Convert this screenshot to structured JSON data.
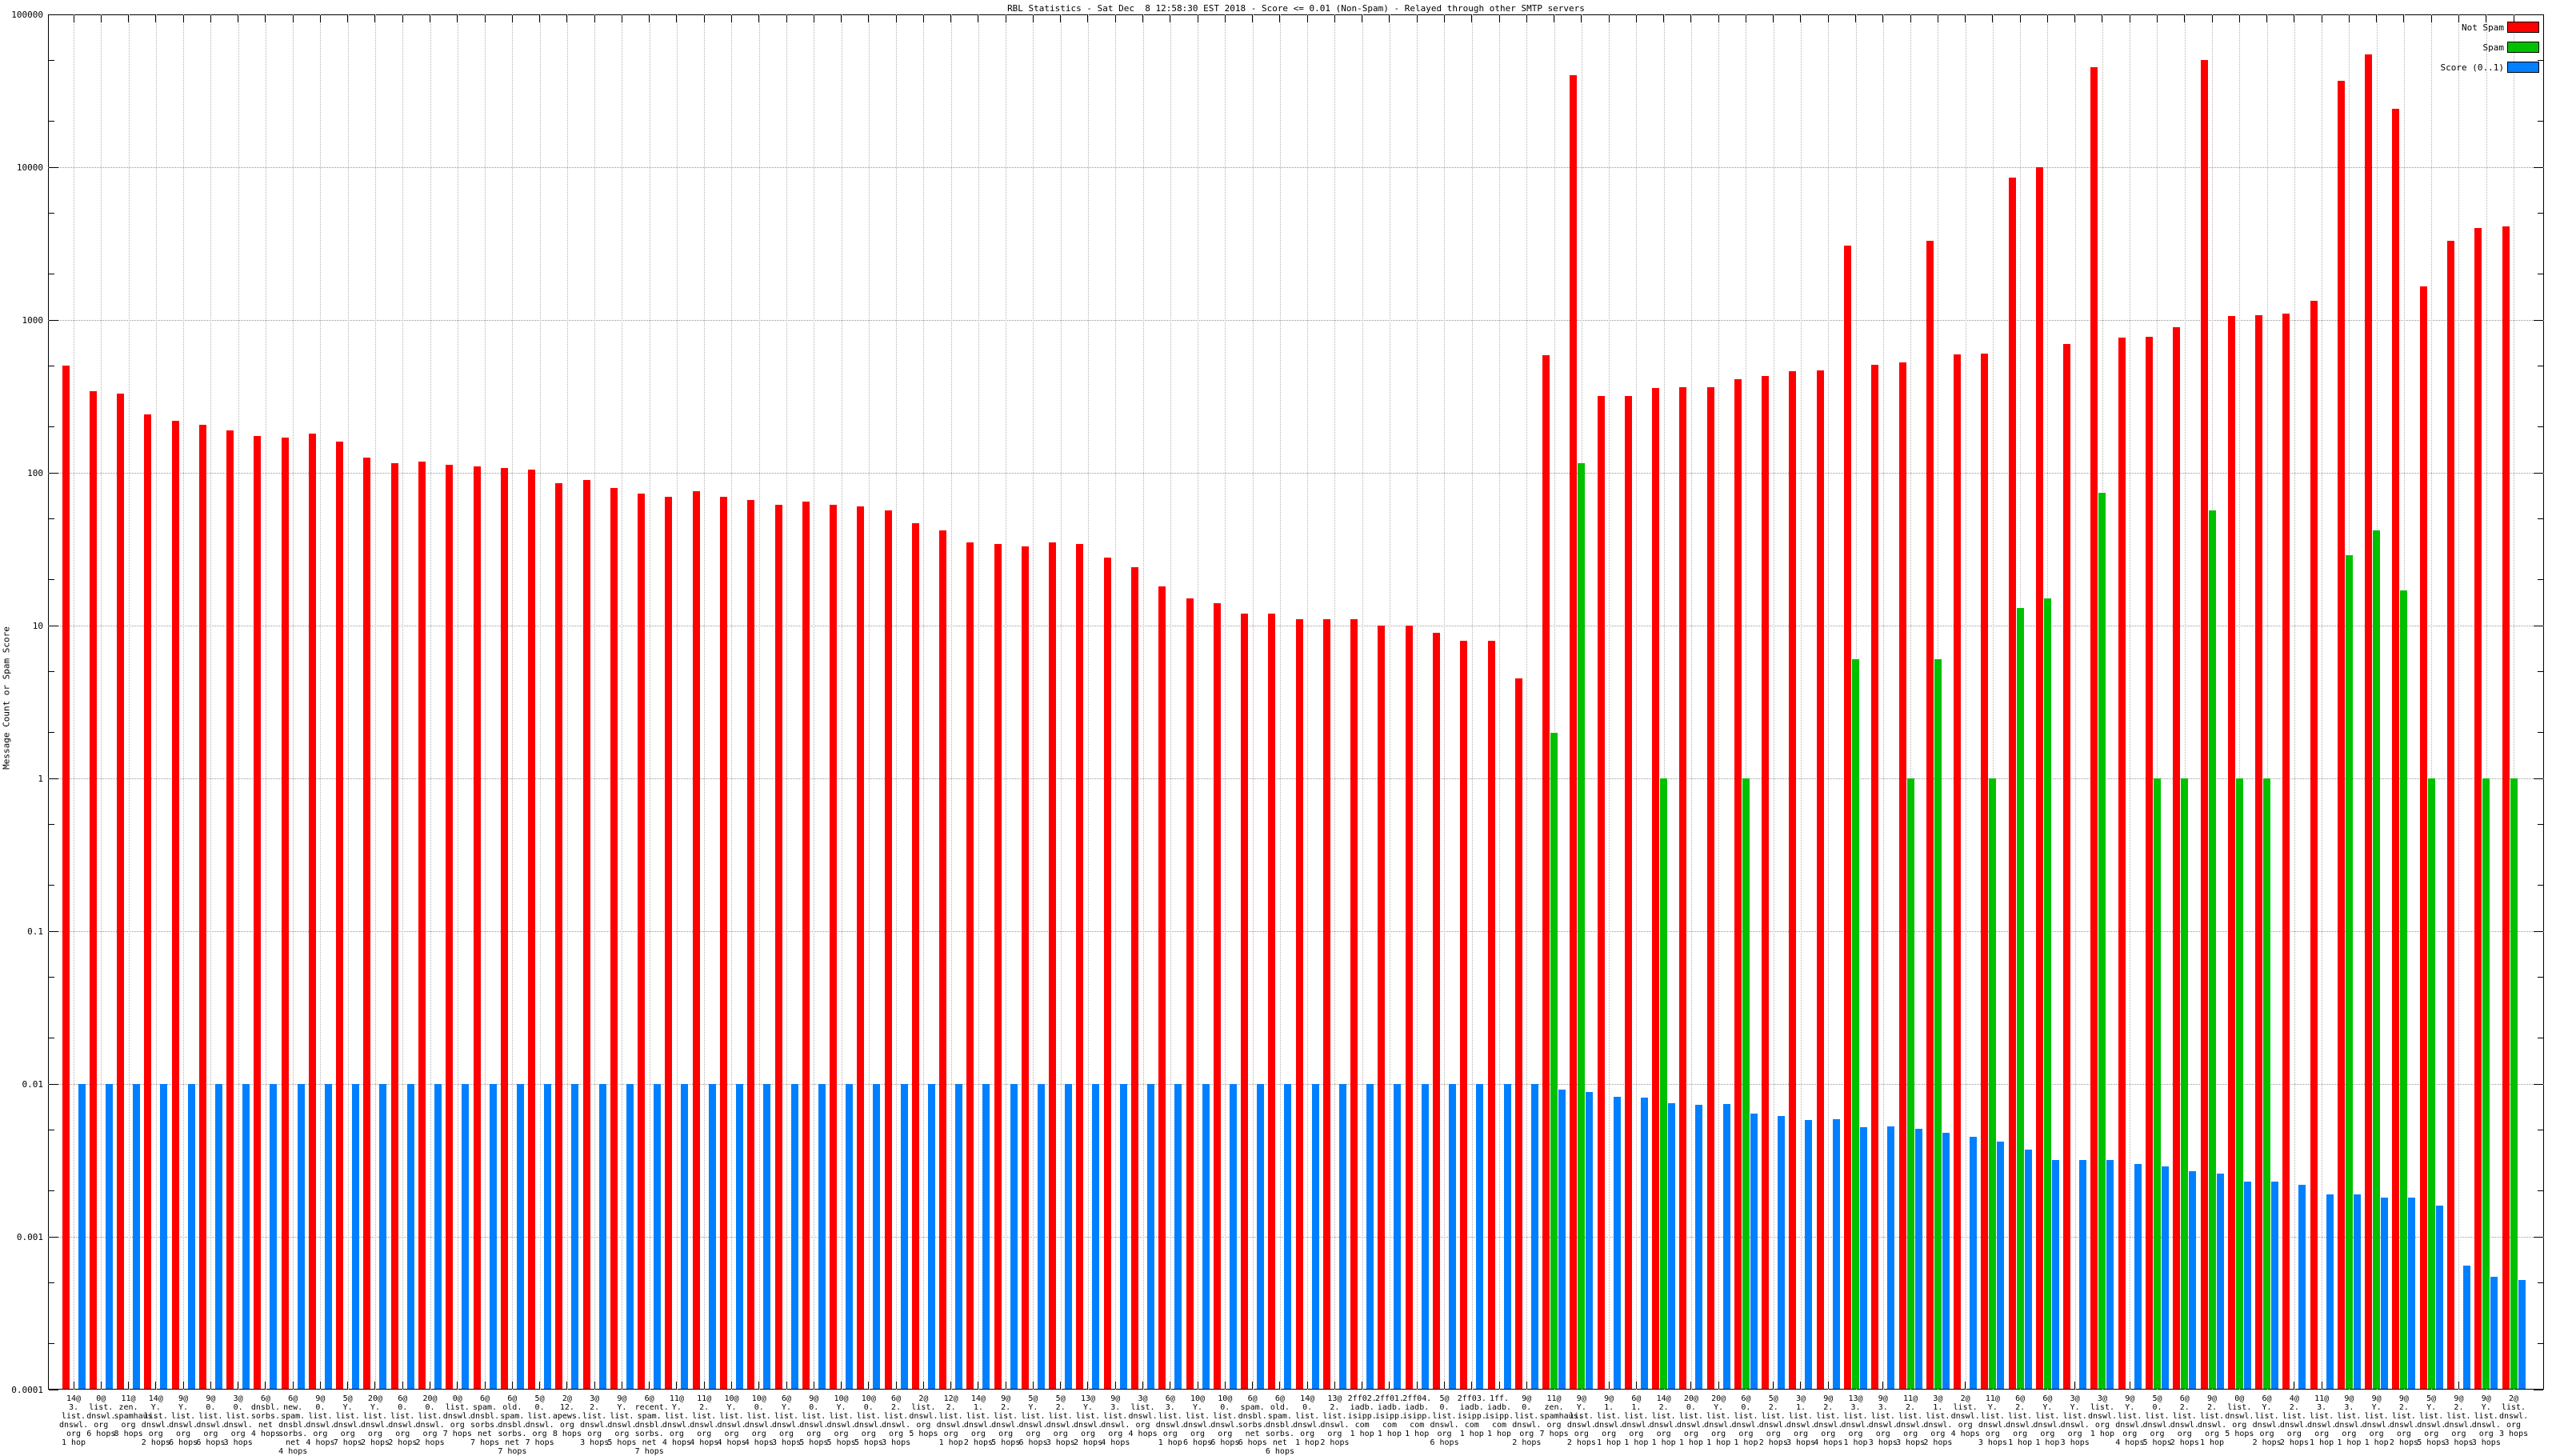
{
  "title": "RBL Statistics - Sat Dec  8 12:58:30 EST 2018 - Score <= 0.01 (Non-Spam) - Relayed through other SMTP servers",
  "y_axis": {
    "label": "Message Count or Spam Score",
    "ticks": [
      "100000",
      "10000",
      "1000",
      "100",
      "10",
      "1",
      "0.1",
      "0.01",
      "0.001",
      "0.0001"
    ]
  },
  "legend": {
    "items": [
      {
        "label": "Not Spam",
        "color": "#ff0000"
      },
      {
        "label": "Spam",
        "color": "#00c000"
      },
      {
        "label": "Score (0..1)",
        "color": "#0080ff"
      }
    ]
  },
  "chart_data": {
    "type": "bar",
    "y_scale": "log",
    "ylim": [
      0.0001,
      100000
    ],
    "grid": true,
    "legend_position": "top-right",
    "title": "RBL Statistics - Sat Dec  8 12:58:30 EST 2018 - Score <= 0.01 (Non-Spam) - Relayed through other SMTP servers",
    "ylabel": "Message Count or Spam Score",
    "series": [
      "Not Spam",
      "Spam",
      "Score (0..1)"
    ],
    "groups": [
      {
        "addr": "14@3.list.dnswl.org",
        "hops": "1 hop",
        "not_spam": 500,
        "spam": null,
        "score": 0.01
      },
      {
        "addr": "0@list.dnswl.org",
        "hops": "6 hops",
        "not_spam": 340,
        "spam": null,
        "score": 0.01
      },
      {
        "addr": "11@zen.spamhaus.org",
        "hops": "8 hops",
        "not_spam": 330,
        "spam": null,
        "score": 0.01
      },
      {
        "addr": "14@Y.list.dnswl.org",
        "hops": "2 hops",
        "not_spam": 240,
        "spam": null,
        "score": 0.01
      },
      {
        "addr": "9@Y.list.dnswl.org",
        "hops": "6 hops",
        "not_spam": 220,
        "spam": null,
        "score": 0.01
      },
      {
        "addr": "9@0.list.dnswl.org",
        "hops": "6 hops",
        "not_spam": 205,
        "spam": null,
        "score": 0.01
      },
      {
        "addr": "3@0.list.dnswl.org",
        "hops": "3 hops",
        "not_spam": 190,
        "spam": null,
        "score": 0.01
      },
      {
        "addr": "6@dnsbl.sorbs.net",
        "hops": "4 hops",
        "not_spam": 175,
        "spam": null,
        "score": 0.01
      },
      {
        "addr": "6@new.spam.dnsbl.sorbs.net",
        "hops": "4 hops",
        "not_spam": 170,
        "spam": null,
        "score": 0.01
      },
      {
        "addr": "9@0.list.dnswl.org",
        "hops": "4 hops",
        "not_spam": 180,
        "spam": null,
        "score": 0.01
      },
      {
        "addr": "5@Y.list.dnswl.org",
        "hops": "7 hops",
        "not_spam": 160,
        "spam": null,
        "score": 0.01
      },
      {
        "addr": "20@Y.list.dnswl.org",
        "hops": "2 hops",
        "not_spam": 125,
        "spam": null,
        "score": 0.01
      },
      {
        "addr": "6@0.list.dnswl.org",
        "hops": "2 hops",
        "not_spam": 115,
        "spam": null,
        "score": 0.01
      },
      {
        "addr": "20@0.list.dnswl.org",
        "hops": "2 hops",
        "not_spam": 118,
        "spam": null,
        "score": 0.01
      },
      {
        "addr": "0@list.dnswl.org",
        "hops": "7 hops",
        "not_spam": 113,
        "spam": null,
        "score": 0.01
      },
      {
        "addr": "6@spam.dnsbl.sorbs.net",
        "hops": "7 hops",
        "not_spam": 110,
        "spam": null,
        "score": 0.01
      },
      {
        "addr": "6@old.spam.dnsbl.sorbs.net",
        "hops": "7 hops",
        "not_spam": 108,
        "spam": null,
        "score": 0.01
      },
      {
        "addr": "5@0.list.dnswl.org",
        "hops": "7 hops",
        "not_spam": 105,
        "spam": null,
        "score": 0.01
      },
      {
        "addr": "2@12.apews.org",
        "hops": "8 hops",
        "not_spam": 86,
        "spam": null,
        "score": 0.01
      },
      {
        "addr": "3@2.list.dnswl.org",
        "hops": "3 hops",
        "not_spam": 90,
        "spam": null,
        "score": 0.01
      },
      {
        "addr": "9@Y.list.dnswl.org",
        "hops": "5 hops",
        "not_spam": 80,
        "spam": null,
        "score": 0.01
      },
      {
        "addr": "6@recent.spam.dnsbl.sorbs.net",
        "hops": "7 hops",
        "not_spam": 73,
        "spam": null,
        "score": 0.01
      },
      {
        "addr": "11@Y.list.dnswl.org",
        "hops": "4 hops",
        "not_spam": 70,
        "spam": null,
        "score": 0.01
      },
      {
        "addr": "11@2.list.dnswl.org",
        "hops": "4 hops",
        "not_spam": 76,
        "spam": null,
        "score": 0.01
      },
      {
        "addr": "10@Y.list.dnswl.org",
        "hops": "4 hops",
        "not_spam": 70,
        "spam": null,
        "score": 0.01
      },
      {
        "addr": "10@0.list.dnswl.org",
        "hops": "4 hops",
        "not_spam": 66,
        "spam": null,
        "score": 0.01
      },
      {
        "addr": "6@Y.list.dnswl.org",
        "hops": "3 hops",
        "not_spam": 62,
        "spam": null,
        "score": 0.01
      },
      {
        "addr": "9@0.list.dnswl.org",
        "hops": "5 hops",
        "not_spam": 65,
        "spam": null,
        "score": 0.01
      },
      {
        "addr": "10@Y.list.dnswl.org",
        "hops": "5 hops",
        "not_spam": 62,
        "spam": null,
        "score": 0.01
      },
      {
        "addr": "10@0.list.dnswl.org",
        "hops": "5 hops",
        "not_spam": 60,
        "spam": null,
        "score": 0.01
      },
      {
        "addr": "6@2.list.dnswl.org",
        "hops": "3 hops",
        "not_spam": 57,
        "spam": null,
        "score": 0.01
      },
      {
        "addr": "2@list.dnswl.org",
        "hops": "5 hops",
        "not_spam": 47,
        "spam": null,
        "score": 0.01
      },
      {
        "addr": "12@2.list.dnswl.org",
        "hops": "1 hop",
        "not_spam": 42,
        "spam": null,
        "score": 0.01
      },
      {
        "addr": "14@1.list.dnswl.org",
        "hops": "2 hops",
        "not_spam": 35,
        "spam": null,
        "score": 0.01
      },
      {
        "addr": "9@2.list.dnswl.org",
        "hops": "5 hops",
        "not_spam": 34,
        "spam": null,
        "score": 0.01
      },
      {
        "addr": "5@Y.list.dnswl.org",
        "hops": "6 hops",
        "not_spam": 33,
        "spam": null,
        "score": 0.01
      },
      {
        "addr": "5@2.list.dnswl.org",
        "hops": "3 hops",
        "not_spam": 35,
        "spam": null,
        "score": 0.01
      },
      {
        "addr": "13@Y.list.dnswl.org",
        "hops": "2 hops",
        "not_spam": 34,
        "spam": null,
        "score": 0.01
      },
      {
        "addr": "9@3.list.dnswl.org",
        "hops": "4 hops",
        "not_spam": 28,
        "spam": null,
        "score": 0.01
      },
      {
        "addr": "3@list.dnswl.org",
        "hops": "4 hops",
        "not_spam": 24,
        "spam": null,
        "score": 0.01
      },
      {
        "addr": "6@3.list.dnswl.org",
        "hops": "1 hop",
        "not_spam": 18,
        "spam": null,
        "score": 0.01
      },
      {
        "addr": "10@Y.list.dnswl.org",
        "hops": "6 hops",
        "not_spam": 15,
        "spam": null,
        "score": 0.01
      },
      {
        "addr": "10@0.list.dnswl.org",
        "hops": "6 hops",
        "not_spam": 14,
        "spam": null,
        "score": 0.01
      },
      {
        "addr": "6@spam.dnsbl.sorbs.net",
        "hops": "6 hops",
        "not_spam": 12,
        "spam": null,
        "score": 0.01
      },
      {
        "addr": "6@old.spam.dnsbl.sorbs.net",
        "hops": "6 hops",
        "not_spam": 12,
        "spam": null,
        "score": 0.01
      },
      {
        "addr": "14@0.list.dnswl.org",
        "hops": "1 hop",
        "not_spam": 11,
        "spam": null,
        "score": 0.01
      },
      {
        "addr": "13@2.list.dnswl.org",
        "hops": "2 hops",
        "not_spam": 11,
        "spam": null,
        "score": 0.01
      },
      {
        "addr": "2ff02.iadb.isipp.com",
        "hops": "1 hop",
        "not_spam": 11,
        "spam": null,
        "score": 0.01
      },
      {
        "addr": "2ff01.iadb.isipp.com",
        "hops": "1 hop",
        "not_spam": 10,
        "spam": null,
        "score": 0.01
      },
      {
        "addr": "2ff04.iadb.isipp.com",
        "hops": "1 hop",
        "not_spam": 10,
        "spam": null,
        "score": 0.01
      },
      {
        "addr": "5@0.list.dnswl.org",
        "hops": "6 hops",
        "not_spam": 9,
        "spam": null,
        "score": 0.01
      },
      {
        "addr": "2ff03.iadb.isipp.com",
        "hops": "1 hop",
        "not_spam": 8,
        "spam": null,
        "score": 0.01
      },
      {
        "addr": "1ff.iadb.isipp.com",
        "hops": "1 hop",
        "not_spam": 8,
        "spam": null,
        "score": 0.01
      },
      {
        "addr": "9@0.list.dnswl.org",
        "hops": "2 hops",
        "not_spam": 4.5,
        "spam": null,
        "score": 0.01
      },
      {
        "addr": "11@zen.spamhaus.org",
        "hops": "7 hops",
        "not_spam": 590,
        "spam": 2,
        "score": 0.0092
      },
      {
        "addr": "9@Y.list.dnswl.org",
        "hops": "2 hops",
        "not_spam": 40000,
        "spam": 115,
        "score": 0.0089
      },
      {
        "addr": "9@1.list.dnswl.org",
        "hops": "1 hop",
        "not_spam": 320,
        "spam": null,
        "score": 0.0082
      },
      {
        "addr": "6@1.list.dnswl.org",
        "hops": "1 hop",
        "not_spam": 318,
        "spam": null,
        "score": 0.0081
      },
      {
        "addr": "14@2.list.dnswl.org",
        "hops": "1 hop",
        "not_spam": 360,
        "spam": 1,
        "score": 0.0075
      },
      {
        "addr": "20@0.list.dnswl.org",
        "hops": "1 hop",
        "not_spam": 362,
        "spam": null,
        "score": 0.0073
      },
      {
        "addr": "20@Y.list.dnswl.org",
        "hops": "1 hop",
        "not_spam": 365,
        "spam": null,
        "score": 0.0074
      },
      {
        "addr": "6@0.list.dnswl.org",
        "hops": "1 hop",
        "not_spam": 410,
        "spam": 1,
        "score": 0.0064
      },
      {
        "addr": "5@2.list.dnswl.org",
        "hops": "2 hops",
        "not_spam": 430,
        "spam": null,
        "score": 0.0062
      },
      {
        "addr": "3@1.list.dnswl.org",
        "hops": "3 hops",
        "not_spam": 465,
        "spam": null,
        "score": 0.0058
      },
      {
        "addr": "9@2.list.dnswl.org",
        "hops": "4 hops",
        "not_spam": 470,
        "spam": null,
        "score": 0.0059
      },
      {
        "addr": "13@3.list.dnswl.org",
        "hops": "1 hop",
        "not_spam": 3050,
        "spam": 6,
        "score": 0.0052
      },
      {
        "addr": "9@3.list.dnswl.org",
        "hops": "3 hops",
        "not_spam": 510,
        "spam": null,
        "score": 0.0053
      },
      {
        "addr": "11@2.list.dnswl.org",
        "hops": "3 hops",
        "not_spam": 530,
        "spam": 1,
        "score": 0.0051
      },
      {
        "addr": "3@1.list.dnswl.org",
        "hops": "2 hops",
        "not_spam": 3300,
        "spam": 6,
        "score": 0.0048
      },
      {
        "addr": "2@list.dnswl.org",
        "hops": "4 hops",
        "not_spam": 595,
        "spam": null,
        "score": 0.0045
      },
      {
        "addr": "11@Y.list.dnswl.org",
        "hops": "3 hops",
        "not_spam": 605,
        "spam": 1,
        "score": 0.0042
      },
      {
        "addr": "6@2.list.dnswl.org",
        "hops": "1 hop",
        "not_spam": 8600,
        "spam": 13,
        "score": 0.0037
      },
      {
        "addr": "6@Y.list.dnswl.org",
        "hops": "1 hop",
        "not_spam": 10000,
        "spam": 15,
        "score": 0.0032
      },
      {
        "addr": "3@Y.list.dnswl.org",
        "hops": "3 hops",
        "not_spam": 700,
        "spam": null,
        "score": 0.0032
      },
      {
        "addr": "3@list.dnswl.org",
        "hops": "1 hop",
        "not_spam": 45000,
        "spam": 74,
        "score": 0.0032
      },
      {
        "addr": "9@Y.list.dnswl.org",
        "hops": "4 hops",
        "not_spam": 765,
        "spam": null,
        "score": 0.003
      },
      {
        "addr": "5@0.list.dnswl.org",
        "hops": "5 hops",
        "not_spam": 775,
        "spam": 1,
        "score": 0.0029
      },
      {
        "addr": "6@2.list.dnswl.org",
        "hops": "2 hops",
        "not_spam": 900,
        "spam": 1,
        "score": 0.0027
      },
      {
        "addr": "9@2.list.dnswl.org",
        "hops": "1 hop",
        "not_spam": 50000,
        "spam": 57,
        "score": 0.0026
      },
      {
        "addr": "0@list.dnswl.org",
        "hops": "5 hops",
        "not_spam": 1060,
        "spam": 1,
        "score": 0.0023
      },
      {
        "addr": "6@Y.list.dnswl.org",
        "hops": "2 hops",
        "not_spam": 1070,
        "spam": 1,
        "score": 0.0023
      },
      {
        "addr": "4@2.list.dnswl.org",
        "hops": "2 hops",
        "not_spam": 1100,
        "spam": null,
        "score": 0.0022
      },
      {
        "addr": "11@3.list.dnswl.org",
        "hops": "1 hop",
        "not_spam": 1330,
        "spam": null,
        "score": 0.0019
      },
      {
        "addr": "9@3.list.dnswl.org",
        "hops": "1 hop",
        "not_spam": 36800,
        "spam": 29,
        "score": 0.0019
      },
      {
        "addr": "9@Y.list.dnswl.org",
        "hops": "1 hop",
        "not_spam": 55000,
        "spam": 42,
        "score": 0.0018
      },
      {
        "addr": "9@2.list.dnswl.org",
        "hops": "2 hops",
        "not_spam": 24000,
        "spam": 17,
        "score": 0.0018
      },
      {
        "addr": "5@Y.list.dnswl.org",
        "hops": "5 hops",
        "not_spam": 1660,
        "spam": 1,
        "score": 0.0016
      },
      {
        "addr": "9@2.list.dnswl.org",
        "hops": "3 hops",
        "not_spam": 3300,
        "spam": null,
        "score": 0.00065
      },
      {
        "addr": "9@Y.list.dnswl.org",
        "hops": "3 hops",
        "not_spam": 4000,
        "spam": 1,
        "score": 0.00055
      },
      {
        "addr": "2@list.dnswl.org",
        "hops": "3 hops",
        "not_spam": 4100,
        "spam": 1,
        "score": 0.00052
      }
    ]
  }
}
